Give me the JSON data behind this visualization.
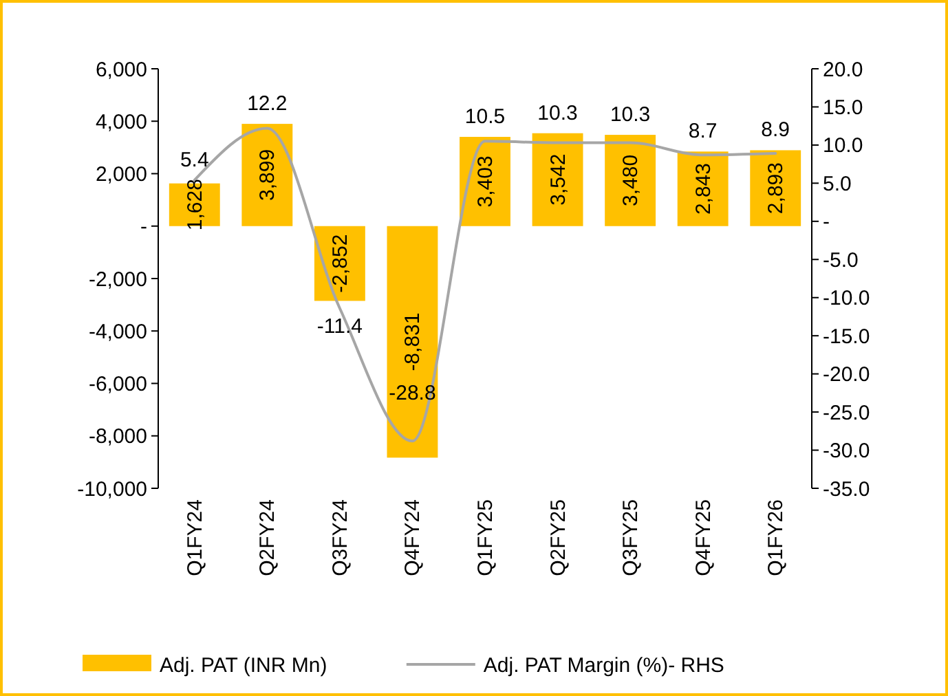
{
  "chart_data": {
    "type": "bar",
    "categories": [
      "Q1FY24",
      "Q2FY24",
      "Q3FY24",
      "Q4FY24",
      "Q1FY25",
      "Q2FY25",
      "Q3FY25",
      "Q4FY25",
      "Q1FY26"
    ],
    "series": [
      {
        "name": "Adj. PAT (INR Mn)",
        "color": "#ffc000",
        "values": [
          1628,
          3899,
          -2852,
          -8831,
          3403,
          3542,
          3480,
          2843,
          2893
        ],
        "value_labels": [
          "1,628",
          "3,899",
          "-2,852",
          "-8,831",
          "3,403",
          "3,542",
          "3,480",
          "2,843",
          "2,893"
        ]
      },
      {
        "name": "Adj. PAT Margin (%)- RHS",
        "type": "line",
        "axis": "y2",
        "color": "#a6a6a6",
        "values": [
          5.4,
          12.2,
          -11.4,
          -28.8,
          10.5,
          10.3,
          10.3,
          8.7,
          8.9
        ]
      }
    ],
    "data_labels": true,
    "ylim": [
      -10000,
      6000
    ],
    "yticks": [
      {
        "value": -10000,
        "label": "-10,000"
      },
      {
        "value": -8000,
        "label": "-8,000"
      },
      {
        "value": -6000,
        "label": "-6,000"
      },
      {
        "value": -4000,
        "label": "-4,000"
      },
      {
        "value": -2000,
        "label": "-2,000"
      },
      {
        "value": 0,
        "label": "-"
      },
      {
        "value": 2000,
        "label": "2,000"
      },
      {
        "value": 4000,
        "label": "4,000"
      },
      {
        "value": 6000,
        "label": "6,000"
      }
    ],
    "y2lim": [
      -35,
      20
    ],
    "y2ticks": [
      {
        "value": -35,
        "label": "-35.0"
      },
      {
        "value": -30,
        "label": "-30.0"
      },
      {
        "value": -25,
        "label": "-25.0"
      },
      {
        "value": -20,
        "label": "-20.0"
      },
      {
        "value": -15,
        "label": "-15.0"
      },
      {
        "value": -10,
        "label": "-10.0"
      },
      {
        "value": -5,
        "label": "-5.0"
      },
      {
        "value": 0,
        "label": "-"
      },
      {
        "value": 5,
        "label": "5.0"
      },
      {
        "value": 10,
        "label": "10.0"
      },
      {
        "value": 15,
        "label": "15.0"
      },
      {
        "value": 20,
        "label": "20.0"
      }
    ],
    "grid": false,
    "legend": "bottom",
    "marker": "none",
    "line_style": "solid"
  }
}
